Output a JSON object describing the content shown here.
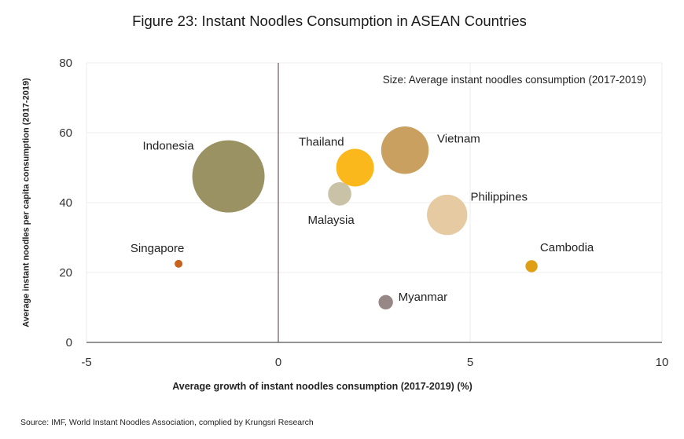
{
  "title": "Figure 23: Instant Noodles Consumption in ASEAN Countries",
  "source": "Source: IMF, World Instant Noodles Association, complied by Krungsri Research",
  "chart_data": {
    "type": "bubble",
    "xlabel": "Average growth of instant noodles consumption (2017-2019) (%)",
    "ylabel": "Average instant noodles per capita consumption (2017-2019)",
    "size_note": "Size: Average instant noodles consumption (2017-2019)",
    "xlim": [
      -5,
      10
    ],
    "ylim": [
      0,
      80
    ],
    "xticks": [
      -5,
      0,
      5,
      10
    ],
    "yticks": [
      0,
      20,
      40,
      60,
      80
    ],
    "grid": true,
    "points": [
      {
        "name": "Indonesia",
        "x": -1.3,
        "y": 47.5,
        "size": 12.5,
        "color": "#9a9262"
      },
      {
        "name": "Thailand",
        "x": 2.0,
        "y": 50.0,
        "size": 3.4,
        "color": "#fbb81c"
      },
      {
        "name": "Vietnam",
        "x": 3.3,
        "y": 55.0,
        "size": 5.4,
        "color": "#c9a060"
      },
      {
        "name": "Malaysia",
        "x": 1.6,
        "y": 42.5,
        "size": 1.3,
        "color": "#c9c2a6"
      },
      {
        "name": "Philippines",
        "x": 4.4,
        "y": 36.5,
        "size": 3.9,
        "color": "#e6cba2"
      },
      {
        "name": "Singapore",
        "x": -2.6,
        "y": 22.5,
        "size": 0.1,
        "color": "#c8621c"
      },
      {
        "name": "Cambodia",
        "x": 6.6,
        "y": 21.8,
        "size": 0.35,
        "color": "#de9f12"
      },
      {
        "name": "Myanmar",
        "x": 2.8,
        "y": 11.5,
        "size": 0.5,
        "color": "#978786"
      }
    ]
  }
}
